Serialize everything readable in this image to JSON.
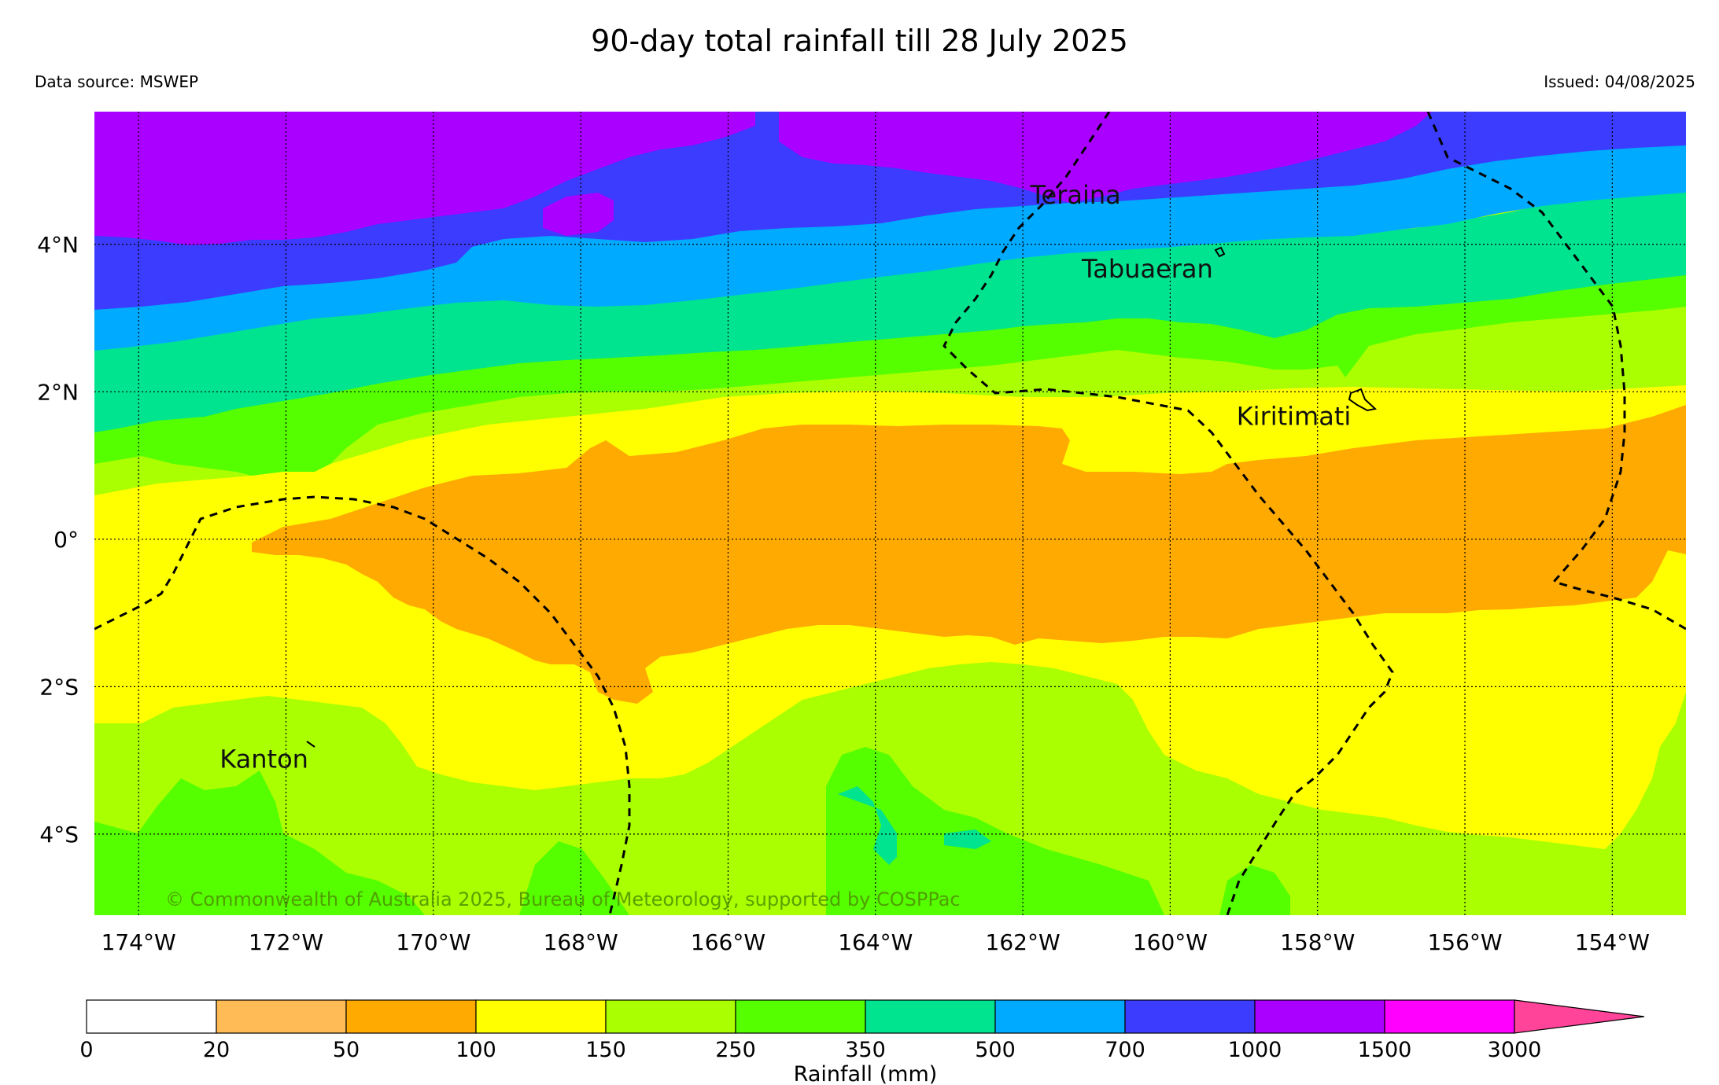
{
  "header": {
    "title": "90-day total rainfall till 28 July 2025",
    "source": "Data source: MSWEP",
    "issued": "Issued: 04/08/2025"
  },
  "map": {
    "lon_range": [
      -174.6,
      -153.0
    ],
    "lat_range": [
      -5.1,
      5.8
    ],
    "lat_ticks": [
      {
        "value": 4,
        "label": "4°N"
      },
      {
        "value": 2,
        "label": "2°N"
      },
      {
        "value": 0,
        "label": "0°"
      },
      {
        "value": -2,
        "label": "2°S"
      },
      {
        "value": -4,
        "label": "4°S"
      }
    ],
    "lon_ticks": [
      {
        "value": -174,
        "label": "174°W"
      },
      {
        "value": -172,
        "label": "172°W"
      },
      {
        "value": -170,
        "label": "170°W"
      },
      {
        "value": -168,
        "label": "168°W"
      },
      {
        "value": -166,
        "label": "166°W"
      },
      {
        "value": -164,
        "label": "164°W"
      },
      {
        "value": -162,
        "label": "162°W"
      },
      {
        "value": -160,
        "label": "160°W"
      },
      {
        "value": -158,
        "label": "158°W"
      },
      {
        "value": -156,
        "label": "156°W"
      },
      {
        "value": -154,
        "label": "154°W"
      }
    ],
    "places": [
      {
        "name": "Teraina",
        "lon": -161.9,
        "lat": 4.55
      },
      {
        "name": "Tabuaeran",
        "lon": -161.2,
        "lat": 3.55
      },
      {
        "name": "Kiritimati",
        "lon": -159.1,
        "lat": 1.55
      },
      {
        "name": "Kanton",
        "lon": -172.9,
        "lat": -3.1
      }
    ],
    "copyright": "© Commonwealth of Australia 2025, Bureau of Meteorology, supported by COSPPac",
    "band_colors": {
      "50-100": "#ffaa00",
      "100-150": "#ffff00",
      "150-250": "#aaff00",
      "250-350": "#55ff00",
      "350-500": "#00e38f",
      "500-700": "#00aaff",
      "700-1000": "#3c3cff",
      "1000-1500": "#aa00ff"
    },
    "boundary_color": "#000000"
  },
  "colorbar": {
    "label": "Rainfall (mm)",
    "ticks": [
      "0",
      "20",
      "50",
      "100",
      "150",
      "250",
      "350",
      "500",
      "700",
      "1000",
      "1500",
      "3000"
    ],
    "colors": [
      "#ffffff",
      "#ffbb55",
      "#ffaa00",
      "#ffff00",
      "#aaff00",
      "#55ff00",
      "#00e38f",
      "#00aaff",
      "#3c3cff",
      "#aa00ff",
      "#ff00ff"
    ],
    "extend_color": "#ff4499"
  }
}
